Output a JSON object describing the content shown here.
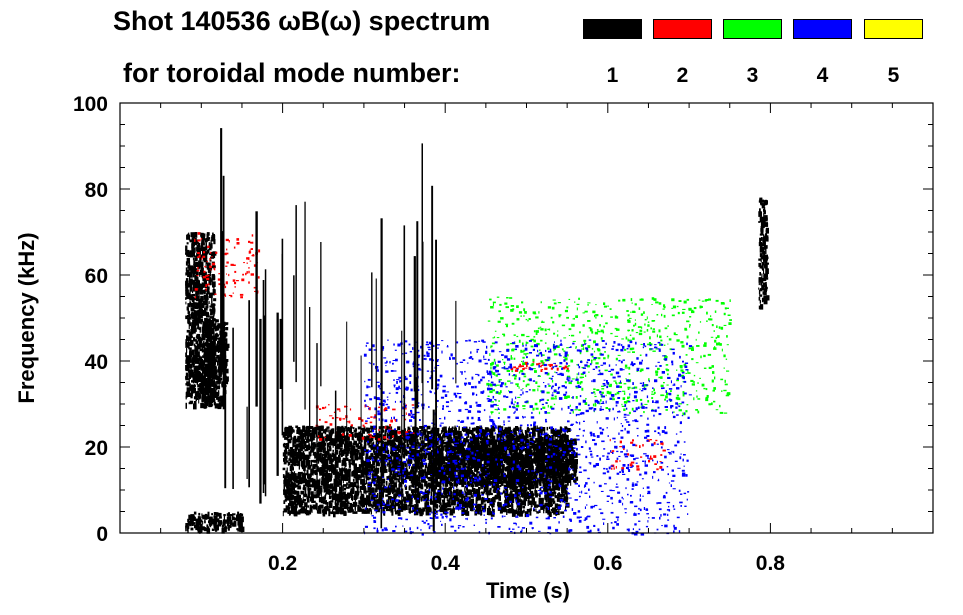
{
  "chart_data": {
    "type": "heatmap",
    "title_line1": "Shot 140536 ωB(ω) spectrum",
    "title_line2": "for toroidal mode number:",
    "xlabel": "Time (s)",
    "ylabel": "Frequency (kHz)",
    "xlim": [
      0.0,
      1.0
    ],
    "ylim": [
      0,
      100
    ],
    "x_ticks": [
      {
        "value": 0.2,
        "label": "0.2"
      },
      {
        "value": 0.4,
        "label": "0.4"
      },
      {
        "value": 0.6,
        "label": "0.6"
      },
      {
        "value": 0.8,
        "label": "0.8"
      }
    ],
    "y_ticks": [
      {
        "value": 0,
        "label": "0"
      },
      {
        "value": 20,
        "label": "20"
      },
      {
        "value": 40,
        "label": "40"
      },
      {
        "value": 60,
        "label": "60"
      },
      {
        "value": 80,
        "label": "80"
      },
      {
        "value": 100,
        "label": "100"
      }
    ],
    "legend": [
      {
        "label": "1",
        "color": "#000000"
      },
      {
        "label": "2",
        "color": "#ff0000"
      },
      {
        "label": "3",
        "color": "#00ff00"
      },
      {
        "label": "4",
        "color": "#0000ff"
      },
      {
        "label": "5",
        "color": "#ffff00"
      }
    ],
    "series": [
      {
        "mode": "1",
        "color": "#000000",
        "regions": [
          {
            "t": [
              0.08,
              0.115
            ],
            "f": [
              30,
              70
            ]
          },
          {
            "t": [
              0.1,
              0.13
            ],
            "f": [
              30,
              50
            ]
          },
          {
            "t": [
              0.2,
              0.55
            ],
            "f": [
              5,
              25
            ]
          },
          {
            "t": [
              0.38,
              0.56
            ],
            "f": [
              12,
              22
            ]
          },
          {
            "t": [
              0.08,
              0.15
            ],
            "f": [
              1,
              5
            ]
          },
          {
            "t": [
              0.785,
              0.795
            ],
            "f": [
              52,
              78
            ]
          }
        ]
      },
      {
        "mode": "2",
        "color": "#ff0000",
        "regions": [
          {
            "t": [
              0.09,
              0.17
            ],
            "f": [
              55,
              70
            ]
          },
          {
            "t": [
              0.24,
              0.36
            ],
            "f": [
              22,
              30
            ]
          },
          {
            "t": [
              0.48,
              0.55
            ],
            "f": [
              38,
              40
            ]
          },
          {
            "t": [
              0.6,
              0.67
            ],
            "f": [
              15,
              22
            ]
          }
        ]
      },
      {
        "mode": "3",
        "color": "#00ff00",
        "regions": [
          {
            "t": [
              0.45,
              0.75
            ],
            "f": [
              28,
              55
            ]
          }
        ]
      },
      {
        "mode": "4",
        "color": "#0000ff",
        "regions": [
          {
            "t": [
              0.3,
              0.7
            ],
            "f": [
              0,
              45
            ]
          }
        ]
      }
    ]
  }
}
